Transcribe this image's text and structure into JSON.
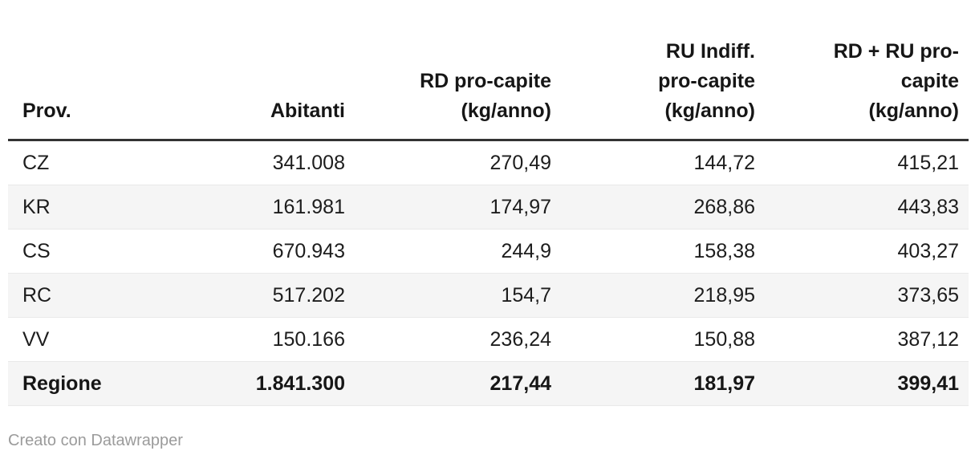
{
  "table": {
    "columns": [
      {
        "label": "Prov."
      },
      {
        "label": "Abitanti"
      },
      {
        "label": "RD pro-capite\n(kg/anno)"
      },
      {
        "label": "RU Indiff.\npro-capite\n(kg/anno)"
      },
      {
        "label": "RD + RU pro-\ncapite\n(kg/anno)"
      }
    ],
    "rows": [
      {
        "cells": [
          "CZ",
          "341.008",
          "270,49",
          "144,72",
          "415,21"
        ]
      },
      {
        "cells": [
          "KR",
          "161.981",
          "174,97",
          "268,86",
          "443,83"
        ]
      },
      {
        "cells": [
          "CS",
          "670.943",
          "244,9",
          "158,38",
          "403,27"
        ]
      },
      {
        "cells": [
          "RC",
          "517.202",
          "154,7",
          "218,95",
          "373,65"
        ]
      },
      {
        "cells": [
          "VV",
          "150.166",
          "236,24",
          "150,88",
          "387,12"
        ]
      },
      {
        "cells": [
          "Regione",
          "1.841.300",
          "217,44",
          "181,97",
          "399,41"
        ],
        "is_total": true
      }
    ]
  },
  "footer": {
    "attribution": "Creato con Datawrapper"
  },
  "colors": {
    "header_rule": "#333333",
    "zebra_row": "#f5f5f5",
    "row_divider": "#e9e9e9",
    "text": "#1d1d1d",
    "footer_text": "#9b9b9b"
  },
  "chart_data": {
    "type": "table",
    "title": "",
    "columns": [
      "Prov.",
      "Abitanti",
      "RD pro-capite (kg/anno)",
      "RU Indiff. pro-capite (kg/anno)",
      "RD + RU pro-capite (kg/anno)"
    ],
    "rows": [
      [
        "CZ",
        341008,
        270.49,
        144.72,
        415.21
      ],
      [
        "KR",
        161981,
        174.97,
        268.86,
        443.83
      ],
      [
        "CS",
        670943,
        244.9,
        158.38,
        403.27
      ],
      [
        "RC",
        517202,
        154.7,
        218.95,
        373.65
      ],
      [
        "VV",
        150166,
        236.24,
        150.88,
        387.12
      ],
      [
        "Regione",
        1841300,
        217.44,
        181.97,
        399.41
      ]
    ]
  }
}
